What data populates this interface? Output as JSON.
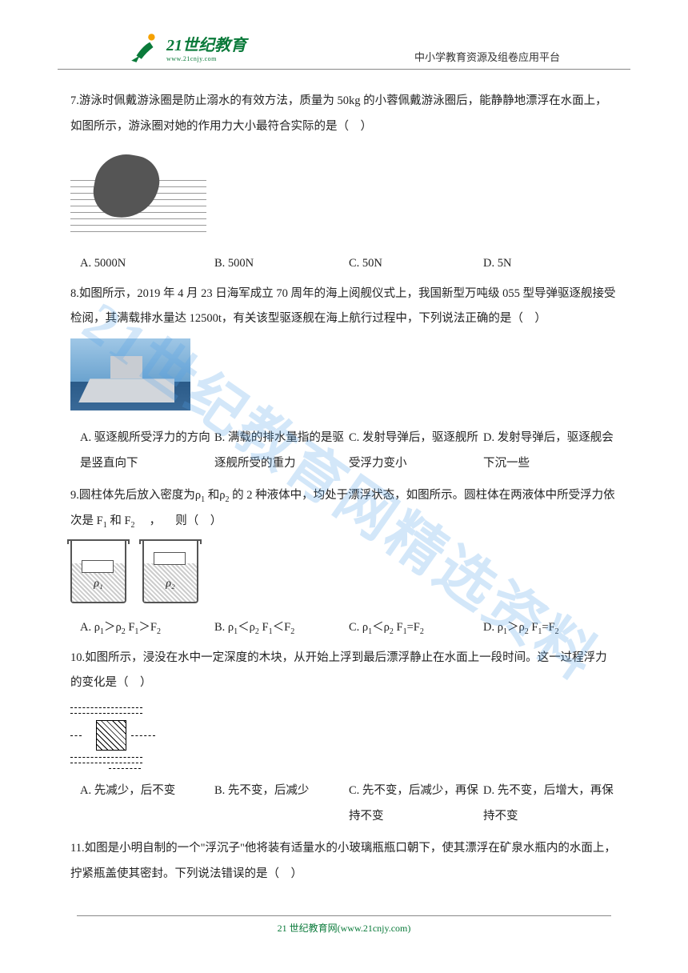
{
  "colors": {
    "text": "#222222",
    "brand_green": "#0a7a3a",
    "rule": "#888888",
    "watermark": "rgba(80,160,230,0.25)",
    "background": "#ffffff"
  },
  "typography": {
    "body_fontsize_pt": 11,
    "line_height": 2.2,
    "sub_fontsize_pt": 7.5
  },
  "header": {
    "logo_cn": "21世纪教育",
    "logo_en": "www.21cnjy.com",
    "right_text": "中小学教育资源及组卷应用平台"
  },
  "watermark": "21世纪教育网精选资料",
  "questions": [
    {
      "num": "7.",
      "text": "游泳时佩戴游泳圈是防止溺水的有效方法，质量为 50kg 的小蓉佩戴游泳圈后，能静静地漂浮在水面上，如图所示，游泳圈对她的作用力大小最符合实际的是（　）",
      "figure": "swim",
      "options_layout": "4col",
      "options": [
        "A. 5000N",
        "B. 500N",
        "C. 50N",
        "D. 5N"
      ]
    },
    {
      "num": "8.",
      "text": "如图所示，2019 年 4 月 23 日海军成立 70 周年的海上阅舰仪式上，我国新型万吨级 055 型导弹驱逐舰接受检阅，其满载排水量达 12500t，有关该型驱逐舰在海上航行过程中，下列说法正确的是（　）",
      "figure": "ship",
      "options_layout": "2col",
      "options": [
        "A. 驱逐舰所受浮力的方向是竖直向下",
        "B. 满载的排水量指的是驱逐舰所受的重力",
        "C. 发射导弹后，驱逐舰所受浮力变小",
        "D. 发射导弹后，驱逐舰会下沉一些"
      ]
    },
    {
      "num": "9.",
      "text_parts": [
        "圆柱体先后放入密度为ρ",
        "1",
        " 和ρ",
        "2",
        " 的 2 种液体中，均处于漂浮状态，如图所示。圆柱体在两液体中所受浮力依次是 F",
        "1",
        " 和 F",
        "2",
        " 　， 　则（　）"
      ],
      "figure": "beakers",
      "beaker_labels": [
        "ρ₁",
        "ρ₂"
      ],
      "options_layout": "4col",
      "options_html": [
        "A. ρ<sub>1</sub>＞ρ<sub>2</sub> F<sub>1</sub>＞F<sub>2</sub>",
        "B. ρ<sub>1</sub>＜ρ<sub>2</sub> F<sub>1</sub>＜F<sub>2</sub>",
        "C. ρ<sub>1</sub>＜ρ<sub>2</sub> F<sub>1</sub>=F<sub>2</sub>",
        "D. ρ<sub>1</sub>＞ρ<sub>2</sub> F<sub>1</sub>=F<sub>2</sub>"
      ]
    },
    {
      "num": "10.",
      "text": "如图所示，浸没在水中一定深度的木块，从开始上浮到最后漂浮静止在水面上一段时间。这一过程浮力的变化是（　）",
      "figure": "float",
      "options_layout": "2col",
      "options": [
        "A. 先减少，后不变",
        "B. 先不变，后减少",
        "C. 先不变，后减少，再保持不变",
        "D. 先不变，后增大，再保持不变"
      ]
    },
    {
      "num": "11.",
      "text": "如图是小明自制的一个\"浮沉子\"他将装有适量水的小玻璃瓶瓶口朝下，使其漂浮在矿泉水瓶内的水面上，拧紧瓶盖使其密封。下列说法错误的是（　）"
    }
  ],
  "footer": "21 世纪教育网(www.21cnjy.com)"
}
